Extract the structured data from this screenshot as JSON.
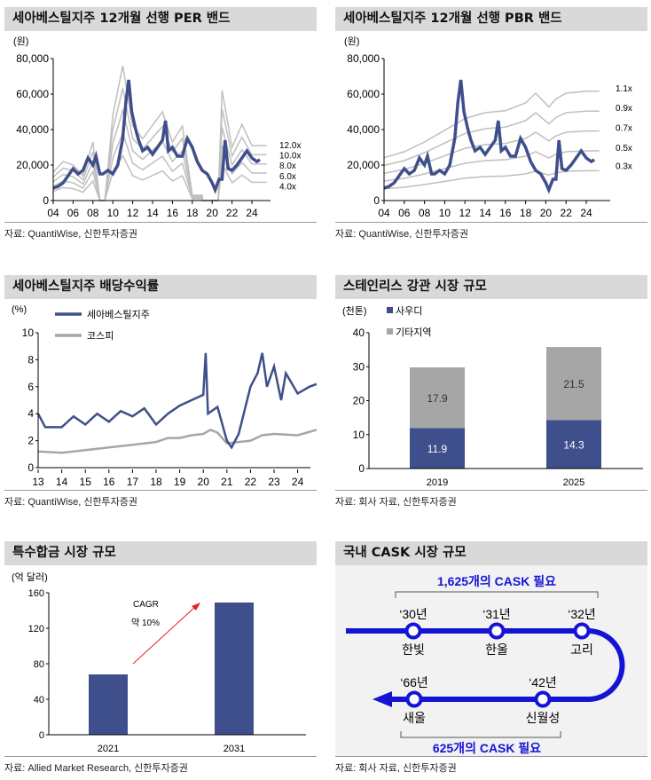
{
  "colors": {
    "navy": "#3f4f8c",
    "gray": "#a6a6a6",
    "band": "#bfbfbf",
    "blue": "#1414d6",
    "title_bg": "#d9d9d9"
  },
  "per_chart": {
    "title": "세아베스틸지주 12개월 선행 PER 밴드",
    "footer": "자료: QuantiWise, 신한투자증권",
    "chart_data": {
      "type": "line",
      "unit": "(원)",
      "ylim": [
        0,
        80000
      ],
      "yticks": [
        "0",
        "20,000",
        "40,000",
        "60,000",
        "80,000"
      ],
      "xticks": [
        "04",
        "06",
        "08",
        "10",
        "12",
        "14",
        "16",
        "18",
        "20",
        "22",
        "24"
      ],
      "price": [
        [
          2004,
          7000
        ],
        [
          2004.5,
          8000
        ],
        [
          2005,
          10000
        ],
        [
          2005.5,
          14000
        ],
        [
          2006,
          18000
        ],
        [
          2006.5,
          15000
        ],
        [
          2007,
          17000
        ],
        [
          2007.5,
          24000
        ],
        [
          2008,
          20000
        ],
        [
          2008.3,
          25000
        ],
        [
          2008.7,
          15000
        ],
        [
          2009,
          15000
        ],
        [
          2009.5,
          17000
        ],
        [
          2010,
          15000
        ],
        [
          2010.5,
          20000
        ],
        [
          2011,
          35000
        ],
        [
          2011.3,
          55000
        ],
        [
          2011.6,
          68000
        ],
        [
          2011.9,
          50000
        ],
        [
          2012.3,
          40000
        ],
        [
          2012.6,
          34000
        ],
        [
          2013,
          28000
        ],
        [
          2013.5,
          30000
        ],
        [
          2014,
          26000
        ],
        [
          2014.5,
          30000
        ],
        [
          2015,
          34000
        ],
        [
          2015.3,
          45000
        ],
        [
          2015.6,
          28000
        ],
        [
          2016,
          30000
        ],
        [
          2016.5,
          25000
        ],
        [
          2017,
          25000
        ],
        [
          2017.5,
          35000
        ],
        [
          2018,
          30000
        ],
        [
          2018.5,
          22000
        ],
        [
          2019,
          17000
        ],
        [
          2019.5,
          15000
        ],
        [
          2020,
          10000
        ],
        [
          2020.3,
          6000
        ],
        [
          2020.7,
          12000
        ],
        [
          2021,
          12000
        ],
        [
          2021.3,
          34000
        ],
        [
          2021.6,
          18000
        ],
        [
          2022,
          17000
        ],
        [
          2022.5,
          20000
        ],
        [
          2023,
          24000
        ],
        [
          2023.5,
          28000
        ],
        [
          2024,
          24000
        ],
        [
          2024.5,
          22000
        ],
        [
          2024.8,
          23000
        ]
      ],
      "eps": [
        [
          2004,
          1330
        ],
        [
          2005,
          1830
        ],
        [
          2006,
          1670
        ],
        [
          2007,
          1170
        ],
        [
          2008,
          2750
        ],
        [
          2008.7,
          0
        ],
        [
          2009.2,
          0
        ],
        [
          2010,
          4000
        ],
        [
          2011,
          6330
        ],
        [
          2012,
          3500
        ],
        [
          2013,
          2900
        ],
        [
          2015,
          4170
        ],
        [
          2016,
          2750
        ],
        [
          2017,
          3500
        ],
        [
          2018,
          250
        ],
        [
          2019,
          250
        ],
        [
          2019.01,
          0
        ],
        [
          2020.6,
          0
        ],
        [
          2021,
          5170
        ],
        [
          2022,
          2500
        ],
        [
          2023,
          3580
        ],
        [
          2024,
          2580
        ],
        [
          2025.5,
          2580
        ]
      ],
      "bands": [
        {
          "label": "12.0x",
          "multiple": 12
        },
        {
          "label": "10.0x",
          "multiple": 10
        },
        {
          "label": "8.0x",
          "multiple": 8
        },
        {
          "label": "6.0x",
          "multiple": 6
        },
        {
          "label": "4.0x",
          "multiple": 4
        }
      ]
    }
  },
  "pbr_chart": {
    "title": "세아베스틸지주 12개월 선행 PBR 밴드",
    "footer": "자료: QuantiWise, 신한투자증권",
    "chart_data": {
      "type": "line",
      "unit": "(원)",
      "ylim": [
        0,
        80000
      ],
      "yticks": [
        "0",
        "20,000",
        "40,000",
        "60,000",
        "80,000"
      ],
      "xticks": [
        "04",
        "06",
        "08",
        "10",
        "12",
        "14",
        "16",
        "18",
        "20",
        "22",
        "24"
      ],
      "bps": [
        [
          2004,
          22000
        ],
        [
          2006,
          25000
        ],
        [
          2008,
          30000
        ],
        [
          2010,
          36000
        ],
        [
          2012,
          42000
        ],
        [
          2014,
          45000
        ],
        [
          2016,
          46000
        ],
        [
          2018,
          50000
        ],
        [
          2019,
          55000
        ],
        [
          2020.3,
          48000
        ],
        [
          2021,
          52000
        ],
        [
          2022,
          55000
        ],
        [
          2024,
          56000
        ],
        [
          2025.3,
          56000
        ]
      ],
      "bands": [
        {
          "label": "1.1x",
          "multiple": 1.1
        },
        {
          "label": "0.9x",
          "multiple": 0.9
        },
        {
          "label": "0.7x",
          "multiple": 0.7
        },
        {
          "label": "0.5x",
          "multiple": 0.5
        },
        {
          "label": "0.3x",
          "multiple": 0.3
        }
      ]
    }
  },
  "div_chart": {
    "title": "세아베스틸지주 배당수익률",
    "footer": "자료: QuantiWise, 신한투자증권",
    "chart_data": {
      "type": "line",
      "unit": "(%)",
      "ylim": [
        0,
        10
      ],
      "yticks": [
        "0",
        "2",
        "4",
        "6",
        "8",
        "10"
      ],
      "xticks": [
        "13",
        "14",
        "15",
        "16",
        "17",
        "18",
        "19",
        "20",
        "21",
        "22",
        "23",
        "24"
      ],
      "series": [
        {
          "name": "세아베스틸지주",
          "values": [
            [
              2013,
              4
            ],
            [
              2013.3,
              3
            ],
            [
              2014,
              3
            ],
            [
              2014.5,
              3.8
            ],
            [
              2015,
              3.2
            ],
            [
              2015.5,
              4
            ],
            [
              2016,
              3.4
            ],
            [
              2016.5,
              4.2
            ],
            [
              2017,
              3.8
            ],
            [
              2017.5,
              4.4
            ],
            [
              2018,
              3.2
            ],
            [
              2018.5,
              4
            ],
            [
              2019,
              4.6
            ],
            [
              2019.5,
              5
            ],
            [
              2020,
              5.4
            ],
            [
              2020.1,
              8.5
            ],
            [
              2020.2,
              4
            ],
            [
              2020.6,
              4.5
            ],
            [
              2021,
              2
            ],
            [
              2021.2,
              1.5
            ],
            [
              2021.5,
              2.5
            ],
            [
              2022,
              6
            ],
            [
              2022.3,
              7
            ],
            [
              2022.5,
              8.5
            ],
            [
              2022.7,
              6
            ],
            [
              2023,
              7.5
            ],
            [
              2023.3,
              5
            ],
            [
              2023.5,
              7
            ],
            [
              2024,
              5.5
            ],
            [
              2024.5,
              6
            ],
            [
              2024.8,
              6.2
            ]
          ]
        },
        {
          "name": "코스피",
          "values": [
            [
              2013,
              1.2
            ],
            [
              2014,
              1.1
            ],
            [
              2015,
              1.3
            ],
            [
              2016,
              1.5
            ],
            [
              2017,
              1.7
            ],
            [
              2018,
              1.9
            ],
            [
              2018.5,
              2.2
            ],
            [
              2019,
              2.2
            ],
            [
              2019.5,
              2.4
            ],
            [
              2020,
              2.5
            ],
            [
              2020.3,
              2.8
            ],
            [
              2020.6,
              2.6
            ],
            [
              2021,
              1.8
            ],
            [
              2022,
              2
            ],
            [
              2022.5,
              2.4
            ],
            [
              2023,
              2.5
            ],
            [
              2024,
              2.4
            ],
            [
              2024.8,
              2.8
            ]
          ]
        }
      ]
    }
  },
  "steel_chart": {
    "title": "스테인리스 강관 시장 규모",
    "footer": "자료: 회사 자료, 신한투자증권",
    "chart_data": {
      "type": "bar",
      "stacked": true,
      "unit": "(천톤)",
      "ylim": [
        0,
        40
      ],
      "yticks": [
        "0",
        "10",
        "20",
        "30",
        "40"
      ],
      "categories": [
        "2019",
        "2025"
      ],
      "series": [
        {
          "name": "사우디",
          "values": [
            11.9,
            14.3
          ]
        },
        {
          "name": "기타지역",
          "values": [
            17.9,
            21.5
          ]
        }
      ]
    }
  },
  "alloy_chart": {
    "title": "특수합금 시장 규모",
    "footer": "자료: Allied Market Research, 신한투자증권",
    "chart_data": {
      "type": "bar",
      "unit": "(억 달러)",
      "ylim": [
        0,
        160
      ],
      "yticks": [
        "0",
        "40",
        "80",
        "120",
        "160"
      ],
      "categories": [
        "2021",
        "2031"
      ],
      "values": [
        68,
        149
      ],
      "annotation": {
        "line1": "CAGR",
        "line2": "약 10%"
      }
    }
  },
  "cask": {
    "title": "국내 CASK 시장 규모",
    "footer": "자료: 회사 자료, 신한투자증권",
    "top_note": "1,625개의 CASK 필요",
    "bottom_note": "625개의 CASK 필요",
    "stations": [
      {
        "year": "‘30년",
        "name": "한빛"
      },
      {
        "year": "‘31년",
        "name": "한울"
      },
      {
        "year": "‘32년",
        "name": "고리"
      },
      {
        "year": "‘42년",
        "name": "신월성"
      },
      {
        "year": "‘66년",
        "name": "새울"
      }
    ]
  }
}
